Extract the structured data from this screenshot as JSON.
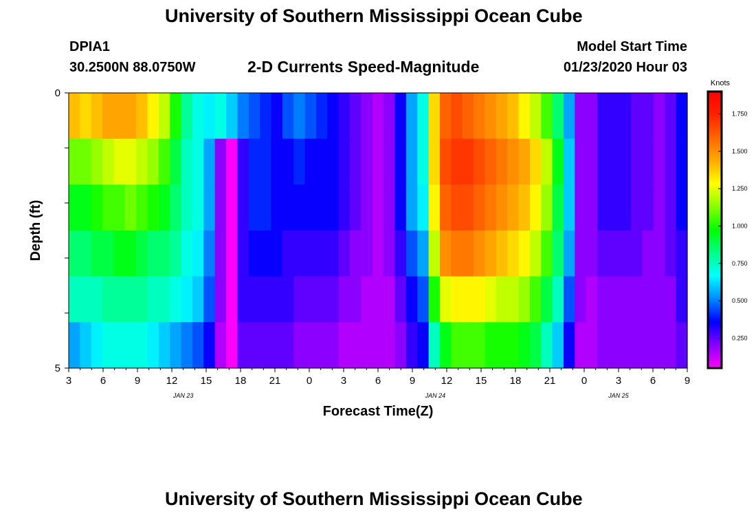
{
  "header": {
    "title": "University of Southern Mississippi Ocean Cube",
    "station": "DPIA1",
    "coords": "30.2500N 88.0750W",
    "subtitle": "2-D Currents Speed-Magnitude",
    "model_label": "Model Start Time",
    "model_time": "01/23/2020 Hour 03"
  },
  "footer": {
    "title": "University of Southern Mississippi Ocean Cube"
  },
  "chart_data": {
    "type": "heatmap",
    "title": "2-D Currents Speed-Magnitude",
    "xlabel": "Forecast Time(Z)",
    "ylabel": "Depth (ft)",
    "x_tick_labels": [
      "3",
      "6",
      "9",
      "12",
      "15",
      "18",
      "21",
      "0",
      "3",
      "6",
      "9",
      "12",
      "15",
      "18",
      "21",
      "0",
      "3",
      "6",
      "9"
    ],
    "x_day_labels": [
      {
        "label": "JAN 23",
        "hour_index": 10
      },
      {
        "label": "JAN 24",
        "hour_index": 32
      },
      {
        "label": "JAN 25",
        "hour_index": 48
      }
    ],
    "hours": 55,
    "y_tick_labels": [
      "0",
      "5"
    ],
    "ylim": [
      0,
      5
    ],
    "depth_layers": [
      0,
      1,
      2,
      3,
      4,
      5
    ],
    "colorbar": {
      "label": "Knots",
      "range": [
        0.05,
        1.9
      ],
      "ticks": [
        0.25,
        0.5,
        0.75,
        1.0,
        1.25,
        1.5,
        1.75
      ],
      "tick_labels": [
        "0.250",
        "0.500",
        "0.750",
        "1.000",
        "1.250",
        "1.500",
        "1.750"
      ]
    },
    "speed_grid_knots": [
      [
        1.4,
        1.35,
        1.4,
        1.45,
        1.45,
        1.45,
        1.4,
        1.3,
        1.2,
        1.0,
        0.8,
        0.7,
        0.65,
        0.7,
        0.6,
        0.5,
        0.45,
        0.4,
        0.35,
        0.45,
        0.5,
        0.45,
        0.4,
        0.35,
        0.3,
        0.25,
        0.2,
        0.15,
        0.2,
        0.35,
        0.55,
        0.7,
        1.35,
        1.6,
        1.65,
        1.6,
        1.55,
        1.5,
        1.45,
        1.4,
        1.3,
        1.2,
        1.05,
        0.85,
        0.55,
        0.2,
        0.2,
        0.3,
        0.3,
        0.3,
        0.25,
        0.25,
        0.2,
        0.25,
        0.35
      ],
      [
        1.1,
        1.1,
        1.15,
        1.2,
        1.25,
        1.25,
        1.2,
        1.15,
        1.05,
        0.9,
        0.75,
        0.7,
        0.55,
        0.2,
        0.05,
        0.3,
        0.4,
        0.4,
        0.35,
        0.35,
        0.4,
        0.35,
        0.35,
        0.35,
        0.3,
        0.25,
        0.2,
        0.15,
        0.2,
        0.35,
        0.55,
        0.7,
        1.35,
        1.65,
        1.7,
        1.7,
        1.65,
        1.6,
        1.55,
        1.5,
        1.45,
        1.35,
        1.2,
        0.95,
        0.6,
        0.2,
        0.2,
        0.3,
        0.3,
        0.3,
        0.25,
        0.25,
        0.2,
        0.25,
        0.35
      ],
      [
        0.95,
        0.95,
        1.0,
        1.05,
        1.05,
        1.1,
        1.05,
        1.0,
        0.95,
        0.85,
        0.75,
        0.7,
        0.55,
        0.2,
        0.05,
        0.3,
        0.4,
        0.4,
        0.35,
        0.35,
        0.35,
        0.35,
        0.35,
        0.35,
        0.3,
        0.25,
        0.2,
        0.15,
        0.2,
        0.35,
        0.55,
        0.65,
        1.3,
        1.6,
        1.65,
        1.65,
        1.6,
        1.55,
        1.5,
        1.45,
        1.4,
        1.3,
        1.15,
        0.9,
        0.6,
        0.2,
        0.2,
        0.3,
        0.3,
        0.3,
        0.25,
        0.25,
        0.2,
        0.25,
        0.35
      ],
      [
        0.85,
        0.85,
        0.9,
        0.9,
        0.95,
        0.95,
        0.9,
        0.85,
        0.85,
        0.8,
        0.7,
        0.65,
        0.5,
        0.2,
        0.05,
        0.3,
        0.35,
        0.35,
        0.35,
        0.3,
        0.3,
        0.3,
        0.3,
        0.3,
        0.25,
        0.2,
        0.2,
        0.15,
        0.2,
        0.3,
        0.45,
        0.55,
        1.2,
        1.5,
        1.55,
        1.55,
        1.5,
        1.45,
        1.4,
        1.35,
        1.3,
        1.2,
        1.05,
        0.85,
        0.55,
        0.2,
        0.2,
        0.25,
        0.25,
        0.25,
        0.25,
        0.2,
        0.2,
        0.25,
        0.3
      ],
      [
        0.75,
        0.75,
        0.75,
        0.8,
        0.8,
        0.8,
        0.8,
        0.75,
        0.75,
        0.7,
        0.65,
        0.6,
        0.45,
        0.2,
        0.05,
        0.3,
        0.3,
        0.3,
        0.3,
        0.3,
        0.25,
        0.25,
        0.25,
        0.25,
        0.2,
        0.2,
        0.15,
        0.15,
        0.15,
        0.25,
        0.35,
        0.45,
        1.0,
        1.25,
        1.3,
        1.3,
        1.3,
        1.25,
        1.2,
        1.2,
        1.15,
        1.05,
        0.9,
        0.75,
        0.45,
        0.2,
        0.15,
        0.2,
        0.2,
        0.2,
        0.2,
        0.2,
        0.2,
        0.2,
        0.3
      ],
      [
        0.55,
        0.6,
        0.65,
        0.7,
        0.7,
        0.7,
        0.7,
        0.65,
        0.6,
        0.55,
        0.5,
        0.45,
        0.35,
        0.15,
        0.05,
        0.25,
        0.25,
        0.25,
        0.25,
        0.25,
        0.2,
        0.2,
        0.2,
        0.2,
        0.15,
        0.15,
        0.15,
        0.15,
        0.15,
        0.2,
        0.3,
        0.35,
        0.75,
        0.95,
        1.05,
        1.05,
        1.05,
        1.0,
        1.0,
        1.0,
        0.95,
        0.9,
        0.75,
        0.6,
        0.35,
        0.15,
        0.15,
        0.2,
        0.2,
        0.2,
        0.2,
        0.2,
        0.2,
        0.2,
        0.25
      ]
    ]
  },
  "colors": {
    "scale": [
      "#ff00ff",
      "#8800ff",
      "#0000ff",
      "#0088ff",
      "#00ffff",
      "#00ff88",
      "#00ff00",
      "#88ff00",
      "#ffff00",
      "#ffaa00",
      "#ff6600",
      "#ff2200",
      "#ff0000"
    ]
  }
}
